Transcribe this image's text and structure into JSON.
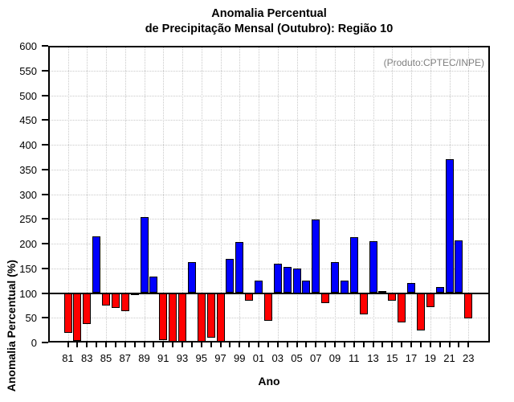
{
  "title": {
    "line1": "Anomalia Percentual",
    "line2": "de Precipitação Mensal (Outubro): Região 10"
  },
  "annotation": "(Produto:CPTEC/INPE)",
  "chart_data": {
    "type": "bar",
    "title": "Anomalia Percentual de Precipitação Mensal (Outubro): Região 10",
    "xlabel": "Ano",
    "ylabel": "Anomalia Percentual (%)",
    "ylim": [
      0,
      600
    ],
    "ytick_labels": [
      "0",
      "50",
      "100",
      "150",
      "200",
      "250",
      "300",
      "350",
      "400",
      "450",
      "500",
      "550",
      "600"
    ],
    "ytick_values": [
      0,
      50,
      100,
      150,
      200,
      250,
      300,
      350,
      400,
      450,
      500,
      550,
      600
    ],
    "baseline": 100,
    "grid": true,
    "legend": "none",
    "colors": {
      "above_baseline": "#0000ff",
      "below_baseline": "#ff0000",
      "annotation_text": "#808080",
      "grid": "#c9c9c9",
      "axis": "#000000"
    },
    "x_tick_labels": [
      "81",
      "83",
      "85",
      "87",
      "89",
      "91",
      "93",
      "95",
      "97",
      "99",
      "01",
      "03",
      "05",
      "07",
      "09",
      "11",
      "13",
      "15",
      "17",
      "19",
      "21",
      "23"
    ],
    "years": [
      1981,
      1982,
      1983,
      1984,
      1985,
      1986,
      1987,
      1988,
      1989,
      1990,
      1991,
      1992,
      1993,
      1994,
      1995,
      1996,
      1997,
      1998,
      1999,
      2000,
      2001,
      2002,
      2003,
      2004,
      2005,
      2006,
      2007,
      2008,
      2009,
      2010,
      2011,
      2012,
      2013,
      2014,
      2015,
      2016,
      2017,
      2018,
      2019,
      2020,
      2021,
      2022,
      2023
    ],
    "values": [
      20,
      3,
      38,
      215,
      75,
      70,
      63,
      96,
      253,
      134,
      5,
      2,
      2,
      162,
      2,
      9,
      2,
      169,
      204,
      84,
      125,
      44,
      159,
      153,
      150,
      125,
      249,
      80,
      162,
      125,
      213,
      57,
      205,
      104,
      85,
      41,
      121,
      25,
      72,
      113,
      370,
      207,
      48
    ]
  }
}
